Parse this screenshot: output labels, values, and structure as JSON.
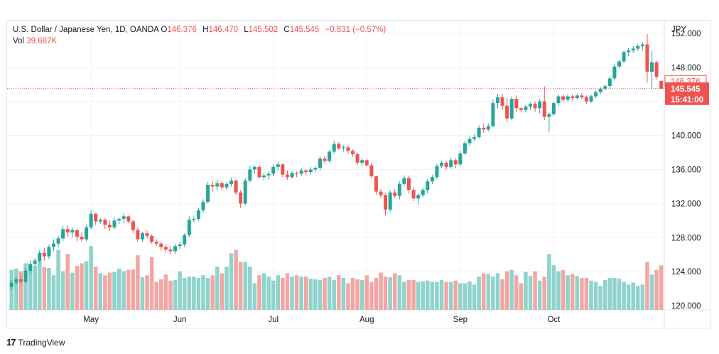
{
  "legend": {
    "title": "U.S. Dollar / Japanese Yen, 1D, OANDA",
    "o_label": "O",
    "o_value": "146.376",
    "h_label": "H",
    "h_value": "146.470",
    "l_label": "L",
    "l_value": "145.502",
    "c_label": "C",
    "c_value": "145.545",
    "change": "−0.831 (−0.57%)",
    "vol_label": "Vol",
    "vol_value": "39.687K"
  },
  "currency": "JPY",
  "last_price_badge": "145.545",
  "countdown_badge": "15:41:00",
  "prev_price_badge": "146.376",
  "brand": "TradingView",
  "colors": {
    "up": "#26a69a",
    "down": "#ef5350",
    "up_vol": "#8fd3cc",
    "down_vol": "#f2a7a5",
    "grid": "#f0f3fa"
  },
  "chart_data": {
    "type": "candlestick",
    "symbol": "USDJPY",
    "timeframe": "1D",
    "y_axis": {
      "ticks": [
        "120.000",
        "124.000",
        "128.000",
        "132.000",
        "136.000",
        "140.000",
        "144.000",
        "148.000",
        "152.000"
      ],
      "ylim": [
        119.5,
        153.5
      ]
    },
    "x_axis": {
      "ticks": [
        "May",
        "Jun",
        "Jul",
        "Aug",
        "Sep",
        "Oct"
      ]
    },
    "month_start_index": {
      "May": 17,
      "Jun": 36,
      "Jul": 56,
      "Aug": 76,
      "Sep": 96,
      "Oct": 116
    },
    "ohlc": [
      [
        122.2,
        123.0,
        121.8,
        122.7
      ],
      [
        122.7,
        123.4,
        122.4,
        123.1
      ],
      [
        123.1,
        123.6,
        122.5,
        122.8
      ],
      [
        122.8,
        124.4,
        122.7,
        124.1
      ],
      [
        124.1,
        125.3,
        123.8,
        124.9
      ],
      [
        124.9,
        125.6,
        124.6,
        125.3
      ],
      [
        125.3,
        126.5,
        125.0,
        126.2
      ],
      [
        126.2,
        126.8,
        125.3,
        125.8
      ],
      [
        125.8,
        127.2,
        125.5,
        126.9
      ],
      [
        126.9,
        127.8,
        126.4,
        127.3
      ],
      [
        127.3,
        128.2,
        126.9,
        127.9
      ],
      [
        127.9,
        129.4,
        127.6,
        129.0
      ],
      [
        129.0,
        129.4,
        128.1,
        128.6
      ],
      [
        128.6,
        129.2,
        128.0,
        128.9
      ],
      [
        128.9,
        129.0,
        127.6,
        128.1
      ],
      [
        128.1,
        128.6,
        127.5,
        127.8
      ],
      [
        127.8,
        129.5,
        127.6,
        129.2
      ],
      [
        129.2,
        131.2,
        129.0,
        130.8
      ],
      [
        130.8,
        130.9,
        129.5,
        129.9
      ],
      [
        129.9,
        130.3,
        129.6,
        130.1
      ],
      [
        130.1,
        130.3,
        129.0,
        129.5
      ],
      [
        129.5,
        130.0,
        128.8,
        129.2
      ],
      [
        129.2,
        130.3,
        129.0,
        130.0
      ],
      [
        130.0,
        130.4,
        129.6,
        130.2
      ],
      [
        130.2,
        130.9,
        129.7,
        130.5
      ],
      [
        130.5,
        130.6,
        129.7,
        129.9
      ],
      [
        129.9,
        130.1,
        128.5,
        128.9
      ],
      [
        128.9,
        129.2,
        127.5,
        127.8
      ],
      [
        127.8,
        128.7,
        127.5,
        128.5
      ],
      [
        128.5,
        128.8,
        127.9,
        128.2
      ],
      [
        128.2,
        128.4,
        127.3,
        127.5
      ],
      [
        127.5,
        127.8,
        127.0,
        127.3
      ],
      [
        127.3,
        127.5,
        126.5,
        126.9
      ],
      [
        126.9,
        127.2,
        126.2,
        126.6
      ],
      [
        126.6,
        127.0,
        126.0,
        126.4
      ],
      [
        126.4,
        127.3,
        126.1,
        127.0
      ],
      [
        127.0,
        127.5,
        126.7,
        127.2
      ],
      [
        127.2,
        128.5,
        126.9,
        128.3
      ],
      [
        128.3,
        130.5,
        128.0,
        130.1
      ],
      [
        130.1,
        130.5,
        129.8,
        130.2
      ],
      [
        130.2,
        131.5,
        130.0,
        131.2
      ],
      [
        131.2,
        132.5,
        130.9,
        132.2
      ],
      [
        132.2,
        134.5,
        132.0,
        134.2
      ],
      [
        134.2,
        134.6,
        133.4,
        134.0
      ],
      [
        134.0,
        134.8,
        133.5,
        134.4
      ],
      [
        134.4,
        134.6,
        133.6,
        133.9
      ],
      [
        133.9,
        134.5,
        133.6,
        134.3
      ],
      [
        134.3,
        135.0,
        134.0,
        134.7
      ],
      [
        134.7,
        134.8,
        133.0,
        133.3
      ],
      [
        133.3,
        133.6,
        131.5,
        132.0
      ],
      [
        132.0,
        135.0,
        131.8,
        134.7
      ],
      [
        134.7,
        136.4,
        134.5,
        136.0
      ],
      [
        136.0,
        136.5,
        135.5,
        136.3
      ],
      [
        136.3,
        136.5,
        134.9,
        135.1
      ],
      [
        135.1,
        135.6,
        134.7,
        135.3
      ],
      [
        135.3,
        135.8,
        134.8,
        135.5
      ],
      [
        135.5,
        136.6,
        135.2,
        136.3
      ],
      [
        136.3,
        136.9,
        135.9,
        136.6
      ],
      [
        136.6,
        136.7,
        135.1,
        135.4
      ],
      [
        135.4,
        135.9,
        134.8,
        135.1
      ],
      [
        135.1,
        135.8,
        134.9,
        135.6
      ],
      [
        135.6,
        135.8,
        135.1,
        135.5
      ],
      [
        135.5,
        136.2,
        135.2,
        135.9
      ],
      [
        135.9,
        136.0,
        135.3,
        135.7
      ],
      [
        135.7,
        136.3,
        135.4,
        136.0
      ],
      [
        136.0,
        136.4,
        135.7,
        136.2
      ],
      [
        136.2,
        137.6,
        135.9,
        137.3
      ],
      [
        137.3,
        137.6,
        136.7,
        137.0
      ],
      [
        137.0,
        138.3,
        136.8,
        138.1
      ],
      [
        138.1,
        139.4,
        137.8,
        139.0
      ],
      [
        139.0,
        139.2,
        138.3,
        138.5
      ],
      [
        138.5,
        138.9,
        138.1,
        138.6
      ],
      [
        138.6,
        138.8,
        137.9,
        138.2
      ],
      [
        138.2,
        138.4,
        137.5,
        137.8
      ],
      [
        137.8,
        138.0,
        136.5,
        136.8
      ],
      [
        136.8,
        137.3,
        136.4,
        137.1
      ],
      [
        137.1,
        137.3,
        136.3,
        136.5
      ],
      [
        136.5,
        136.8,
        135.0,
        135.2
      ],
      [
        135.2,
        135.3,
        133.0,
        133.4
      ],
      [
        133.4,
        133.7,
        132.6,
        133.0
      ],
      [
        133.0,
        133.2,
        130.6,
        131.3
      ],
      [
        131.3,
        133.6,
        131.0,
        133.3
      ],
      [
        133.3,
        133.7,
        132.6,
        132.9
      ],
      [
        132.9,
        134.6,
        132.5,
        134.3
      ],
      [
        134.3,
        135.3,
        134.0,
        135.0
      ],
      [
        135.0,
        135.3,
        133.2,
        133.6
      ],
      [
        133.6,
        133.9,
        132.3,
        132.6
      ],
      [
        132.6,
        133.2,
        131.9,
        133.0
      ],
      [
        133.0,
        133.9,
        132.7,
        133.6
      ],
      [
        133.6,
        134.9,
        133.2,
        134.6
      ],
      [
        134.6,
        135.4,
        134.3,
        135.1
      ],
      [
        135.1,
        136.7,
        134.9,
        136.4
      ],
      [
        136.4,
        137.0,
        136.2,
        136.8
      ],
      [
        136.8,
        137.0,
        136.0,
        136.3
      ],
      [
        136.3,
        137.4,
        136.1,
        137.1
      ],
      [
        137.1,
        137.3,
        136.2,
        136.6
      ],
      [
        136.6,
        138.2,
        136.4,
        137.9
      ],
      [
        137.9,
        139.4,
        137.7,
        139.1
      ],
      [
        139.1,
        139.9,
        138.8,
        139.6
      ],
      [
        139.6,
        140.1,
        139.3,
        139.8
      ],
      [
        139.8,
        141.2,
        139.6,
        140.9
      ],
      [
        140.9,
        141.4,
        140.3,
        140.7
      ],
      [
        140.7,
        141.4,
        140.5,
        141.1
      ],
      [
        141.1,
        144.2,
        141.0,
        143.8
      ],
      [
        143.8,
        144.9,
        143.2,
        144.5
      ],
      [
        144.5,
        144.9,
        143.0,
        143.5
      ],
      [
        143.5,
        144.4,
        141.7,
        142.0
      ],
      [
        142.0,
        144.6,
        141.8,
        144.3
      ],
      [
        144.3,
        144.7,
        142.8,
        143.2
      ],
      [
        143.2,
        143.4,
        142.7,
        143.0
      ],
      [
        143.0,
        143.6,
        142.7,
        143.4
      ],
      [
        143.4,
        143.9,
        143.0,
        143.7
      ],
      [
        143.7,
        144.0,
        142.8,
        143.2
      ],
      [
        143.2,
        144.3,
        142.6,
        144.0
      ],
      [
        144.0,
        145.8,
        141.8,
        142.2
      ],
      [
        142.2,
        142.7,
        140.4,
        142.5
      ],
      [
        142.5,
        144.0,
        142.3,
        143.8
      ],
      [
        143.8,
        144.8,
        143.5,
        144.6
      ],
      [
        144.6,
        144.8,
        143.9,
        144.2
      ],
      [
        144.2,
        144.9,
        144.0,
        144.6
      ],
      [
        144.6,
        144.8,
        144.1,
        144.4
      ],
      [
        144.4,
        144.9,
        144.2,
        144.7
      ],
      [
        144.7,
        145.0,
        144.3,
        144.5
      ],
      [
        144.5,
        144.7,
        143.7,
        144.0
      ],
      [
        144.0,
        144.8,
        143.8,
        144.6
      ],
      [
        144.6,
        145.3,
        144.4,
        145.1
      ],
      [
        145.1,
        145.7,
        144.9,
        145.5
      ],
      [
        145.5,
        146.0,
        145.3,
        145.8
      ],
      [
        145.8,
        146.9,
        145.6,
        146.7
      ],
      [
        146.7,
        148.4,
        146.5,
        148.1
      ],
      [
        148.1,
        148.9,
        147.9,
        148.7
      ],
      [
        148.7,
        150.0,
        148.5,
        149.8
      ],
      [
        149.8,
        150.3,
        149.3,
        150.0
      ],
      [
        150.0,
        150.5,
        149.7,
        150.2
      ],
      [
        150.2,
        150.8,
        149.9,
        150.5
      ],
      [
        150.5,
        150.9,
        150.0,
        150.7
      ],
      [
        150.7,
        151.9,
        146.2,
        147.5
      ],
      [
        147.5,
        149.9,
        145.5,
        148.6
      ],
      [
        148.6,
        148.8,
        146.6,
        146.9
      ],
      [
        146.4,
        146.5,
        145.5,
        145.5
      ]
    ],
    "volume": [
      60,
      62,
      58,
      70,
      68,
      66,
      77,
      64,
      63,
      52,
      90,
      58,
      84,
      56,
      66,
      70,
      73,
      96,
      65,
      55,
      52,
      56,
      57,
      62,
      58,
      60,
      61,
      82,
      49,
      52,
      79,
      42,
      46,
      53,
      44,
      45,
      58,
      48,
      50,
      50,
      48,
      52,
      48,
      52,
      65,
      55,
      65,
      85,
      90,
      72,
      72,
      65,
      40,
      52,
      55,
      50,
      44,
      52,
      48,
      55,
      50,
      52,
      50,
      50,
      47,
      46,
      45,
      48,
      50,
      45,
      52,
      48,
      40,
      48,
      46,
      45,
      52,
      42,
      48,
      56,
      50,
      49,
      55,
      52,
      42,
      45,
      45,
      42,
      43,
      44,
      42,
      42,
      45,
      42,
      42,
      44,
      40,
      40,
      43,
      38,
      50,
      55,
      54,
      50,
      55,
      46,
      58,
      60,
      52,
      40,
      57,
      51,
      58,
      44,
      50,
      84,
      67,
      58,
      60,
      52,
      54,
      51,
      48,
      48,
      44,
      42,
      36,
      45,
      48,
      48,
      47,
      42,
      38,
      41,
      36,
      38,
      72,
      53,
      60,
      67
    ]
  }
}
